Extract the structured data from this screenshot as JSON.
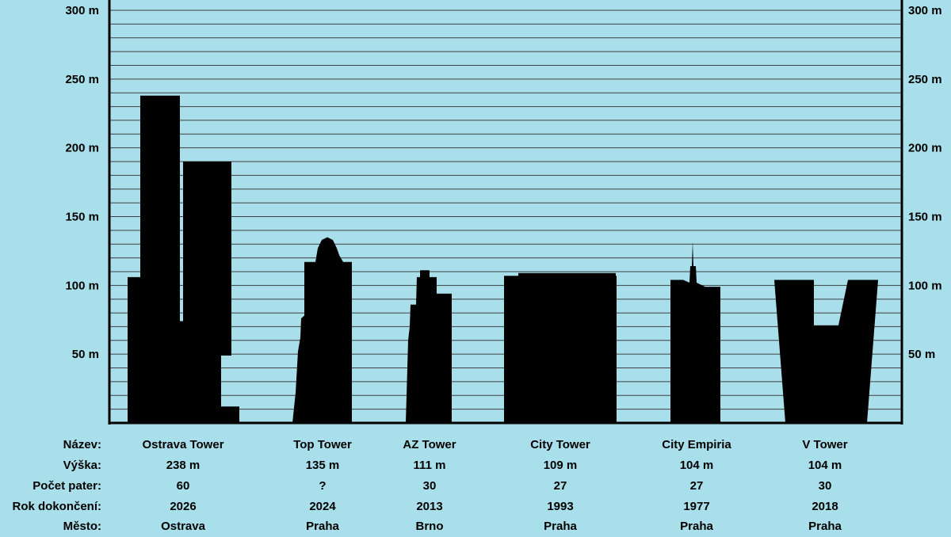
{
  "chart_data": {
    "type": "bar",
    "ylim": [
      0,
      300
    ],
    "grid": true,
    "y_ticks_left": [
      {
        "value": 300,
        "label": "300 m"
      },
      {
        "value": 250,
        "label": "250 m"
      },
      {
        "value": 200,
        "label": "200 m"
      },
      {
        "value": 150,
        "label": "150 m"
      },
      {
        "value": 100,
        "label": "100 m"
      },
      {
        "value": 50,
        "label": "50 m"
      }
    ],
    "y_ticks_right": [
      {
        "value": 300,
        "label": "300 m"
      },
      {
        "value": 250,
        "label": "250 m"
      },
      {
        "value": 200,
        "label": "200 m"
      },
      {
        "value": 150,
        "label": "150 m"
      },
      {
        "value": 100,
        "label": "100 m"
      },
      {
        "value": 50,
        "label": "50 m"
      }
    ],
    "row_labels": [
      "Název:",
      "Výška:",
      "Počet pater:",
      "Rok dokončení:",
      "Město:"
    ],
    "buildings": [
      {
        "name": "Ostrava Tower",
        "height_label": "238 m",
        "floors": "60",
        "year": "2026",
        "city": "Ostrava",
        "height_m": 238
      },
      {
        "name": "Top Tower",
        "height_label": "135 m",
        "floors": "?",
        "year": "2024",
        "city": "Praha",
        "height_m": 135
      },
      {
        "name": "AZ Tower",
        "height_label": "111 m",
        "floors": "30",
        "year": "2013",
        "city": "Brno",
        "height_m": 111
      },
      {
        "name": "City Tower",
        "height_label": "109 m",
        "floors": "27",
        "year": "1993",
        "city": "Praha",
        "height_m": 109
      },
      {
        "name": "City Empiria",
        "height_label": "104 m",
        "floors": "27",
        "year": "1977",
        "city": "Praha",
        "height_m": 104
      },
      {
        "name": "V Tower",
        "height_label": "104 m",
        "floors": "30",
        "year": "2018",
        "city": "Praha",
        "height_m": 104
      }
    ]
  },
  "colors": {
    "background": "#a9dfea",
    "silhouette": "#000000",
    "gridline": "#404040"
  }
}
